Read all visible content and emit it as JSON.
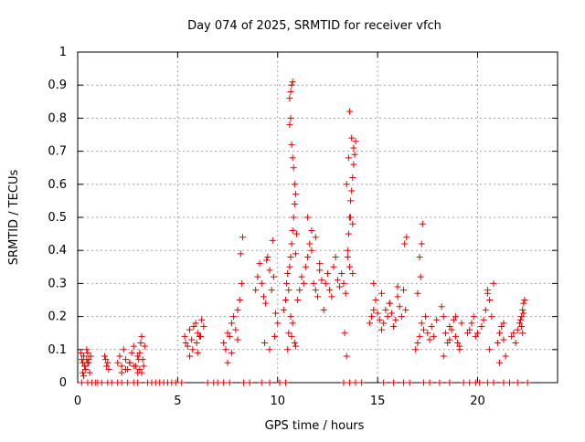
{
  "chart_data": {
    "type": "scatter",
    "title": "Day 074 of 2025, SRMTID for receiver vfch",
    "xlabel": "GPS time / hours",
    "ylabel": "SRMTID / TECUs",
    "xlim": [
      0,
      24
    ],
    "ylim": [
      0,
      1
    ],
    "xticks": [
      0,
      5,
      10,
      15,
      20
    ],
    "xtick_labels": [
      "0",
      "5",
      "10",
      "15",
      "20"
    ],
    "yticks": [
      0,
      0.1,
      0.2,
      0.3,
      0.4,
      0.5,
      0.6,
      0.7,
      0.8,
      0.9,
      1
    ],
    "ytick_labels": [
      "0",
      "0.1",
      "0.2",
      "0.3",
      "0.4",
      "0.5",
      "0.6",
      "0.7",
      "0.8",
      "0.9",
      "1"
    ],
    "grid": true,
    "series": [
      {
        "name": "SRMTID",
        "color": "#e00000",
        "marker": "+",
        "x": [
          0.15,
          0.2,
          0.25,
          0.3,
          0.35,
          0.4,
          0.45,
          0.5,
          0.55,
          0.6,
          0.65,
          0.25,
          0.35,
          0.45,
          0.55,
          0.3,
          0.5,
          1.35,
          1.4,
          1.45,
          1.5,
          1.55,
          2.0,
          2.1,
          2.2,
          2.3,
          2.4,
          2.5,
          2.6,
          2.7,
          2.8,
          2.9,
          3.0,
          3.05,
          2.2,
          2.4,
          2.6,
          2.8,
          3.0,
          3.1,
          3.15,
          3.2,
          3.25,
          3.3,
          3.35,
          3.1,
          3.2,
          5.35,
          5.4,
          5.5,
          5.6,
          5.7,
          5.8,
          5.9,
          6.0,
          6.1,
          6.2,
          6.3,
          5.75,
          5.95,
          6.15,
          5.6,
          6.0,
          7.3,
          7.4,
          7.5,
          7.6,
          7.7,
          7.8,
          7.9,
          8.0,
          8.1,
          8.2,
          7.7,
          8.15,
          8.25,
          8.0,
          7.5,
          8.9,
          9.0,
          9.1,
          9.2,
          9.3,
          9.4,
          9.5,
          9.6,
          9.7,
          9.8,
          9.9,
          10.0,
          9.35,
          9.6,
          9.85,
          9.45,
          9.75,
          10.3,
          10.4,
          10.45,
          10.5,
          10.55,
          10.6,
          10.65,
          10.7,
          10.75,
          10.8,
          10.85,
          10.9,
          10.95,
          10.6,
          10.65,
          10.7,
          10.75,
          10.6,
          10.65,
          10.7,
          10.75,
          10.8,
          10.85,
          10.9,
          10.55,
          10.65,
          10.75,
          10.85,
          10.5,
          10.7,
          10.9,
          11.0,
          11.1,
          11.2,
          11.3,
          11.4,
          11.5,
          11.6,
          11.7,
          11.8,
          11.9,
          12.0,
          12.1,
          12.2,
          11.5,
          11.7,
          11.9,
          12.1,
          12.3,
          12.4,
          12.5,
          12.6,
          12.7,
          12.8,
          12.9,
          13.0,
          13.1,
          13.2,
          13.3,
          13.4,
          13.5,
          13.55,
          13.6,
          13.65,
          13.7,
          13.75,
          13.8,
          13.85,
          13.9,
          13.45,
          13.55,
          13.65,
          13.75,
          13.6,
          13.7,
          13.8,
          13.5,
          13.6,
          13.75,
          13.35,
          13.45,
          14.6,
          14.7,
          14.8,
          14.9,
          15.0,
          15.1,
          15.2,
          15.3,
          15.4,
          15.5,
          15.6,
          15.7,
          15.8,
          15.9,
          16.0,
          16.1,
          16.2,
          16.3,
          16.4,
          14.8,
          15.2,
          15.6,
          16.0,
          16.35,
          16.45,
          16.9,
          17.0,
          17.1,
          17.2,
          17.3,
          17.4,
          17.5,
          17.6,
          17.7,
          17.8,
          17.95,
          17.1,
          17.2,
          17.25,
          17.15,
          17.0,
          18.2,
          18.3,
          18.4,
          18.5,
          18.6,
          18.7,
          18.8,
          18.9,
          19.0,
          19.1,
          19.2,
          18.3,
          18.9,
          19.1,
          18.6,
          19.5,
          19.6,
          19.7,
          19.8,
          19.9,
          20.0,
          20.2,
          20.3,
          20.4,
          20.5,
          20.6,
          20.7,
          20.8,
          20.5,
          20.6,
          21.0,
          21.1,
          21.2,
          21.3,
          21.4,
          21.1,
          21.3,
          21.7,
          21.8,
          21.9,
          22.0,
          22.1,
          22.15,
          22.2,
          22.25,
          22.3,
          22.35,
          22.2,
          22.3,
          22.25,
          0.2,
          0.5,
          0.7,
          0.9,
          1.0,
          1.2,
          1.5,
          1.7,
          2.0,
          2.2,
          2.5,
          2.8,
          3.0,
          3.5,
          3.7,
          3.9,
          4.1,
          4.3,
          4.5,
          4.7,
          4.9,
          5.2,
          6.5,
          6.8,
          7.0,
          7.3,
          7.6,
          8.3,
          8.6,
          9.2,
          9.6,
          10.1,
          10.4,
          13.3,
          13.6,
          13.9,
          14.2,
          15.3,
          15.8,
          16.3,
          16.6,
          17.3,
          17.6,
          18.1,
          18.6,
          19.3,
          19.6,
          19.9,
          20.1,
          20.5,
          20.8,
          21.3,
          21.6,
          22.0,
          22.5
        ],
        "y": [
          0.09,
          0.07,
          0.06,
          0.08,
          0.05,
          0.04,
          0.07,
          0.09,
          0.06,
          0.03,
          0.08,
          0.03,
          0.05,
          0.1,
          0.07,
          0.02,
          0.06,
          0.08,
          0.07,
          0.05,
          0.06,
          0.04,
          0.06,
          0.08,
          0.05,
          0.1,
          0.07,
          0.04,
          0.06,
          0.09,
          0.11,
          0.05,
          0.08,
          0.07,
          0.03,
          0.04,
          0.06,
          0.05,
          0.03,
          0.09,
          0.12,
          0.14,
          0.07,
          0.05,
          0.11,
          0.04,
          0.03,
          0.14,
          0.12,
          0.11,
          0.16,
          0.13,
          0.17,
          0.18,
          0.15,
          0.14,
          0.19,
          0.17,
          0.1,
          0.12,
          0.14,
          0.08,
          0.09,
          0.12,
          0.1,
          0.15,
          0.14,
          0.18,
          0.2,
          0.16,
          0.22,
          0.25,
          0.3,
          0.09,
          0.39,
          0.44,
          0.13,
          0.06,
          0.28,
          0.32,
          0.36,
          0.3,
          0.26,
          0.24,
          0.38,
          0.34,
          0.28,
          0.32,
          0.21,
          0.18,
          0.12,
          0.1,
          0.14,
          0.37,
          0.43,
          0.22,
          0.25,
          0.3,
          0.33,
          0.28,
          0.35,
          0.38,
          0.42,
          0.46,
          0.5,
          0.54,
          0.39,
          0.45,
          0.86,
          0.88,
          0.9,
          0.91,
          0.78,
          0.8,
          0.72,
          0.68,
          0.65,
          0.6,
          0.57,
          0.15,
          0.2,
          0.18,
          0.12,
          0.1,
          0.14,
          0.11,
          0.25,
          0.28,
          0.32,
          0.3,
          0.35,
          0.38,
          0.42,
          0.4,
          0.3,
          0.28,
          0.26,
          0.34,
          0.31,
          0.5,
          0.46,
          0.44,
          0.36,
          0.22,
          0.3,
          0.33,
          0.28,
          0.26,
          0.35,
          0.38,
          0.31,
          0.29,
          0.33,
          0.3,
          0.27,
          0.4,
          0.45,
          0.5,
          0.55,
          0.58,
          0.62,
          0.66,
          0.69,
          0.73,
          0.6,
          0.68,
          0.5,
          0.48,
          0.82,
          0.74,
          0.71,
          0.38,
          0.35,
          0.33,
          0.15,
          0.08,
          0.18,
          0.2,
          0.22,
          0.25,
          0.21,
          0.19,
          0.16,
          0.18,
          0.22,
          0.2,
          0.24,
          0.21,
          0.17,
          0.19,
          0.26,
          0.23,
          0.2,
          0.28,
          0.22,
          0.3,
          0.27,
          0.24,
          0.29,
          0.42,
          0.44,
          0.1,
          0.12,
          0.14,
          0.18,
          0.16,
          0.2,
          0.15,
          0.13,
          0.17,
          0.14,
          0.19,
          0.38,
          0.42,
          0.48,
          0.32,
          0.27,
          0.23,
          0.2,
          0.15,
          0.12,
          0.17,
          0.16,
          0.19,
          0.14,
          0.12,
          0.1,
          0.18,
          0.08,
          0.2,
          0.11,
          0.13,
          0.15,
          0.16,
          0.18,
          0.2,
          0.14,
          0.15,
          0.17,
          0.19,
          0.22,
          0.28,
          0.25,
          0.2,
          0.3,
          0.27,
          0.1,
          0.12,
          0.15,
          0.17,
          0.18,
          0.08,
          0.06,
          0.13,
          0.14,
          0.15,
          0.12,
          0.16,
          0.18,
          0.19,
          0.2,
          0.22,
          0.24,
          0.25,
          0.17,
          0.21,
          0.15,
          0,
          0,
          0,
          0,
          0,
          0,
          0,
          0,
          0,
          0,
          0,
          0,
          0,
          0,
          0,
          0,
          0,
          0,
          0,
          0,
          0,
          0,
          0,
          0,
          0,
          0,
          0,
          0,
          0,
          0,
          0,
          0,
          0,
          0,
          0,
          0,
          0,
          0,
          0,
          0,
          0,
          0,
          0,
          0,
          0,
          0,
          0,
          0,
          0,
          0,
          0,
          0,
          0,
          0,
          0
        ]
      }
    ]
  }
}
